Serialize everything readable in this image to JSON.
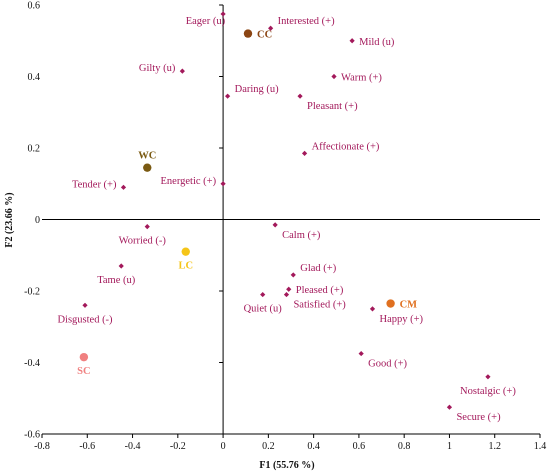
{
  "chart_data": {
    "type": "scatter",
    "xlabel": "F1 (55.76 %)",
    "ylabel": "F2 (23.66 %)",
    "xlim": [
      -0.8,
      1.4
    ],
    "ylim": [
      -0.6,
      0.6
    ],
    "xticks": [
      "-0.8",
      "-0.6",
      "-0.4",
      "-0.2",
      "0",
      "0.2",
      "0.4",
      "0.6",
      "0.8",
      "1",
      "1.2",
      "1.4"
    ],
    "yticks": [
      "0.6",
      "0.4",
      "0.2",
      "0",
      "-0.2",
      "-0.4",
      "-0.6"
    ],
    "grid": false,
    "colors": {
      "emotion": "#a3195b",
      "axis": "#000000",
      "CC": "#8b4513",
      "WC": "#7a5a12",
      "LC": "#f5c518",
      "CM": "#e07020",
      "SC": "#f08080"
    },
    "series": [
      {
        "name": "",
        "kind": "emotion-term",
        "points": [
          {
            "label": "Eager (u)",
            "x": 0.0,
            "y": 0.575,
            "anchor": "w-above-left"
          },
          {
            "label": "Interested (+)",
            "x": 0.21,
            "y": 0.535,
            "anchor": "right-up"
          },
          {
            "label": "Mild (u)",
            "x": 0.57,
            "y": 0.5,
            "anchor": "right"
          },
          {
            "label": "Gilty (u)",
            "x": -0.18,
            "y": 0.415,
            "anchor": "left-up"
          },
          {
            "label": "Warm (+)",
            "x": 0.49,
            "y": 0.4,
            "anchor": "right"
          },
          {
            "label": "Daring (u)",
            "x": 0.02,
            "y": 0.345,
            "anchor": "right-up"
          },
          {
            "label": "Pleasant (+)",
            "x": 0.34,
            "y": 0.345,
            "anchor": "right-down"
          },
          {
            "label": "Affectionate (+)",
            "x": 0.36,
            "y": 0.185,
            "anchor": "right-up"
          },
          {
            "label": "Tender (+)",
            "x": -0.44,
            "y": 0.09,
            "anchor": "left-up"
          },
          {
            "label": "Energetic (+)",
            "x": 0.0,
            "y": 0.1,
            "anchor": "left-up"
          },
          {
            "label": "Calm (+)",
            "x": 0.23,
            "y": -0.015,
            "anchor": "right-down"
          },
          {
            "label": "Worried (-)",
            "x": -0.335,
            "y": -0.02,
            "anchor": "left-down"
          },
          {
            "label": "Tame (u)",
            "x": -0.45,
            "y": -0.13,
            "anchor": "left-down"
          },
          {
            "label": "Glad (+)",
            "x": 0.31,
            "y": -0.155,
            "anchor": "right-up"
          },
          {
            "label": "Pleased (+)",
            "x": 0.29,
            "y": -0.195,
            "anchor": "right"
          },
          {
            "label": "Quiet (u)",
            "x": 0.175,
            "y": -0.21,
            "anchor": "below"
          },
          {
            "label": "Satisfied (+)",
            "x": 0.28,
            "y": -0.21,
            "anchor": "right-down"
          },
          {
            "label": "Disgusted (-)",
            "x": -0.61,
            "y": -0.24,
            "anchor": "below"
          },
          {
            "label": "Happy (+)",
            "x": 0.66,
            "y": -0.25,
            "anchor": "right-down"
          },
          {
            "label": "Good (+)",
            "x": 0.61,
            "y": -0.375,
            "anchor": "right-down"
          },
          {
            "label": "Nostalgic (+)",
            "x": 1.17,
            "y": -0.44,
            "anchor": "below"
          },
          {
            "label": "Secure (+)",
            "x": 1.0,
            "y": -0.525,
            "anchor": "right-down"
          }
        ]
      },
      {
        "name": "",
        "kind": "sample",
        "points": [
          {
            "label": "CC",
            "x": 0.11,
            "y": 0.52,
            "color": "#8b4513",
            "anchor": "right"
          },
          {
            "label": "WC",
            "x": -0.335,
            "y": 0.145,
            "color": "#7a5a12",
            "anchor": "above"
          },
          {
            "label": "LC",
            "x": -0.165,
            "y": -0.09,
            "color": "#f5c518",
            "anchor": "below"
          },
          {
            "label": "CM",
            "x": 0.74,
            "y": -0.235,
            "color": "#e07020",
            "anchor": "right"
          },
          {
            "label": "SC",
            "x": -0.615,
            "y": -0.385,
            "color": "#f08080",
            "anchor": "below"
          }
        ]
      }
    ]
  }
}
